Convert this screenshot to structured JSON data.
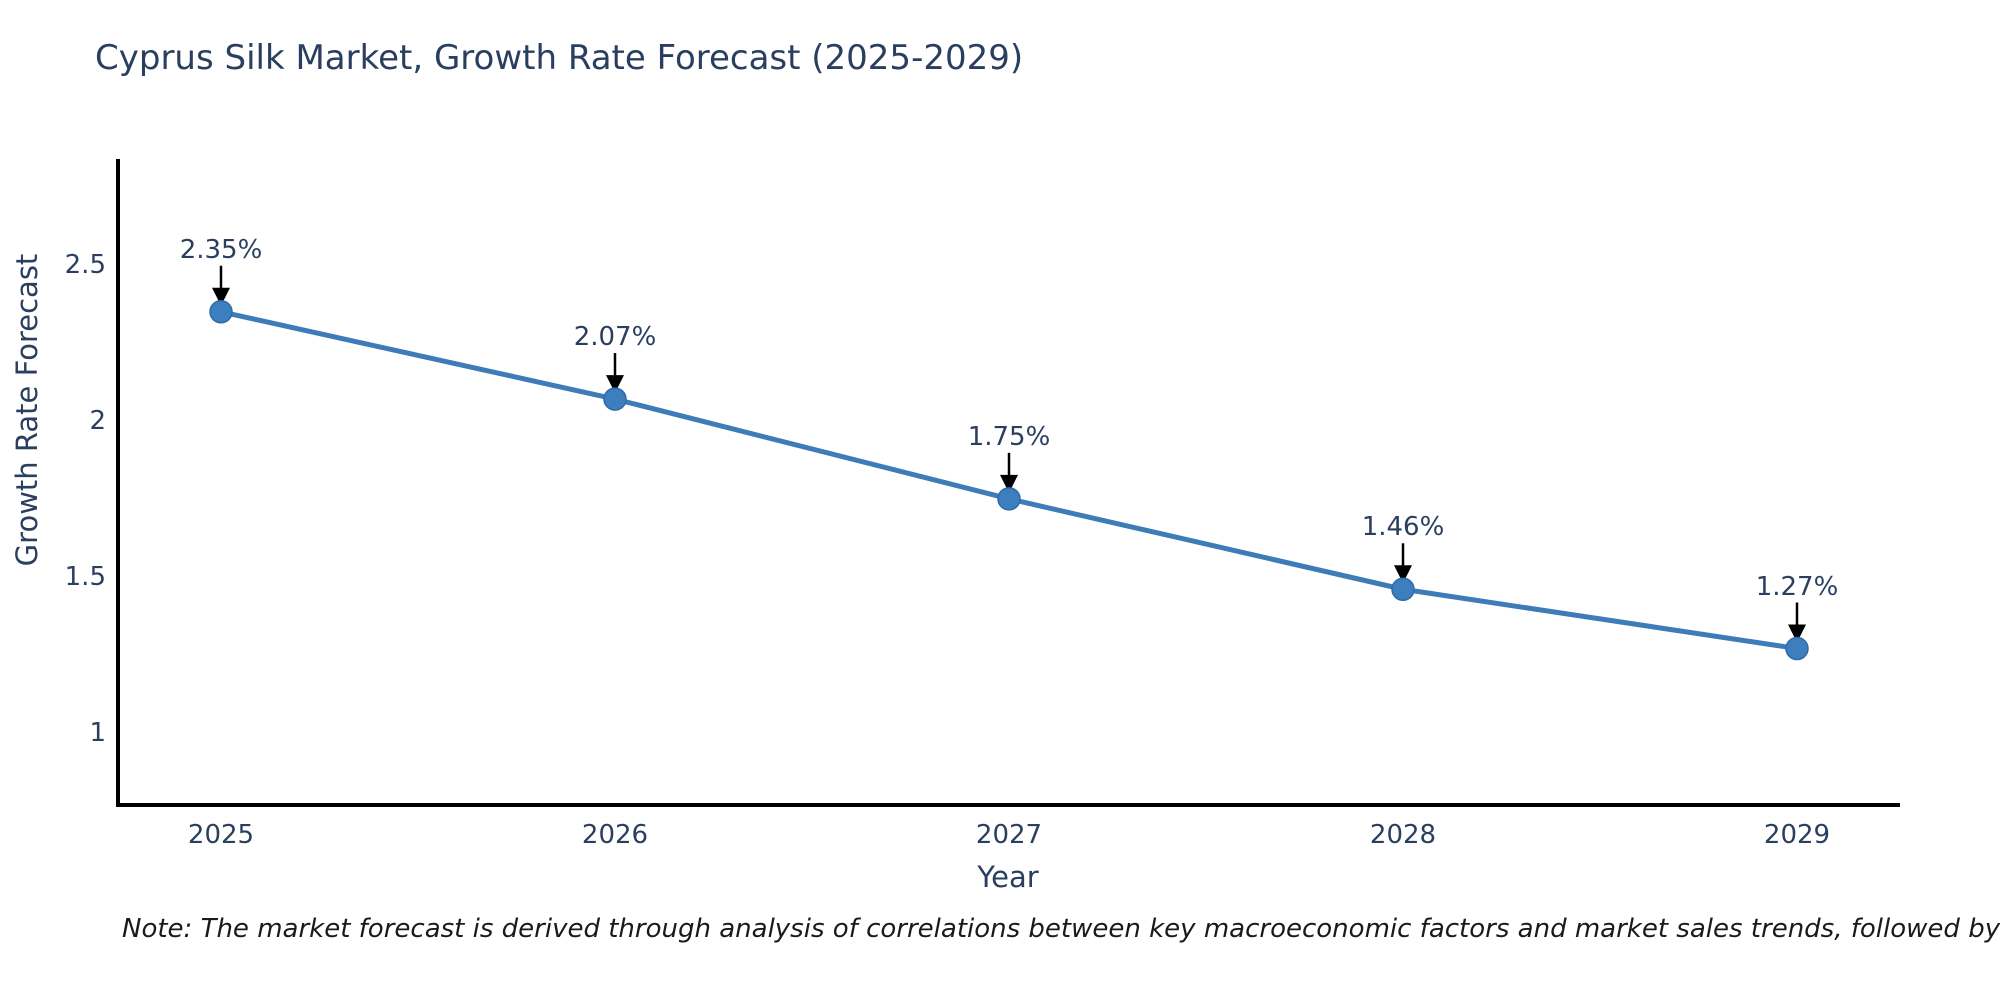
{
  "title": "Cyprus Silk Market, Growth Rate Forecast (2025-2029)",
  "note": "Note: The market forecast is derived through analysis of correlations between key macroeconomic factors and market sales trends, followed by predictive modeling to project future sales",
  "chart_data": {
    "type": "line",
    "title": "Cyprus Silk Market, Growth Rate Forecast (2025-2029)",
    "xlabel": "Year",
    "ylabel": "Growth Rate Forecast",
    "x": [
      2025,
      2026,
      2027,
      2028,
      2029
    ],
    "values": [
      2.35,
      2.07,
      1.75,
      1.46,
      1.27
    ],
    "point_labels": [
      "2.35%",
      "2.07%",
      "1.75%",
      "1.46%",
      "1.27%"
    ],
    "x_tick_labels": [
      "2025",
      "2026",
      "2027",
      "2028",
      "2029"
    ],
    "x_tick_values": [
      2025,
      2026,
      2027,
      2028,
      2029
    ],
    "y_tick_labels": [
      "2.5",
      "2",
      "1.5",
      "1"
    ],
    "y_tick_values": [
      2.5,
      2.0,
      1.5,
      1.0
    ],
    "xlim": [
      2024.73,
      2029.26
    ],
    "ylim": [
      0.76,
      2.84
    ],
    "grid": false,
    "legend": false,
    "annotations_have_arrows": true,
    "colors": {
      "line": "#3e7cb7",
      "marker": "#3d7ebf",
      "marker_edge": "#2f6ba6",
      "axis": "#000000",
      "text": "#2a3f5f",
      "arrow": "#000000",
      "note_text": "#1a1a1a"
    }
  }
}
